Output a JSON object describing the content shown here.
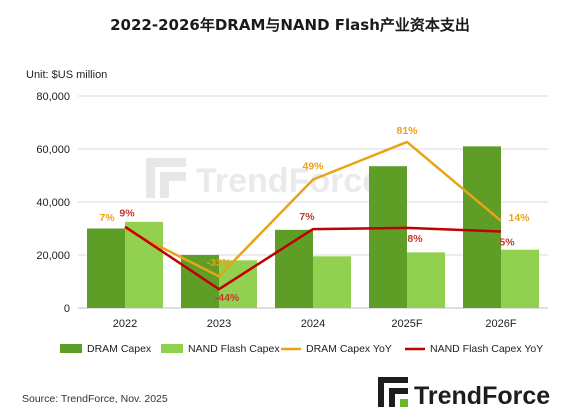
{
  "title": "2022-2026年DRAM与NAND Flash产业资本支出",
  "unit_label": "Unit: $US million",
  "source": "Source: TrendForce, Nov. 2025",
  "brand": {
    "name": "TrendForce",
    "icon": "trendforce-logo-icon",
    "watermark": "TrendForce"
  },
  "colors": {
    "dram_bar": "#5e9e26",
    "nand_bar": "#92d050",
    "dram_line": "#e8a317",
    "nand_line": "#c00000",
    "grid": "#d9d9d9"
  },
  "chart_data": {
    "type": "bar",
    "categories": [
      "2022",
      "2023",
      "2024",
      "2025F",
      "2026F"
    ],
    "ylim": [
      0,
      80000
    ],
    "yticks": [
      "0",
      "20,000",
      "40,000",
      "60,000",
      "80,000"
    ],
    "grid": true,
    "legend_position": "bottom",
    "series": [
      {
        "name": "DRAM Capex",
        "kind": "bar",
        "values": [
          30000,
          20000,
          29500,
          53500,
          61000
        ]
      },
      {
        "name": "NAND Flash Capex",
        "kind": "bar",
        "values": [
          32500,
          18000,
          19500,
          21000,
          22000
        ]
      },
      {
        "name": "DRAM Capex YoY",
        "kind": "line",
        "values": [
          7,
          -33,
          49,
          81,
          14
        ],
        "labels": [
          "7%",
          "-33%",
          "49%",
          "81%",
          "14%"
        ]
      },
      {
        "name": "NAND Flash Capex YoY",
        "kind": "line",
        "values": [
          9,
          -44,
          7,
          8,
          5
        ],
        "labels": [
          "9%",
          "-44%",
          "7%",
          "8%",
          "5%"
        ]
      }
    ]
  }
}
